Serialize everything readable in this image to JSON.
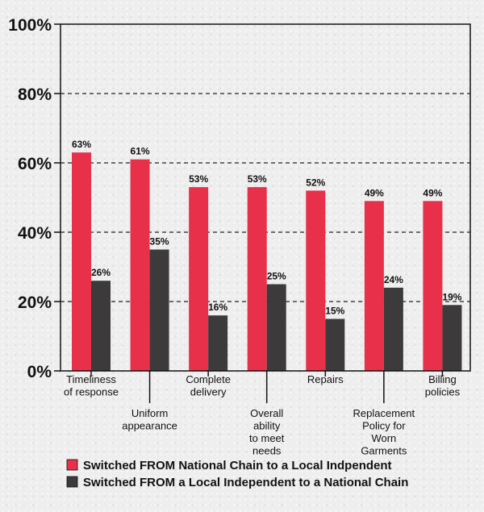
{
  "chart_data": {
    "type": "bar",
    "title": "",
    "xlabel": "",
    "ylabel": "",
    "ylim": [
      0,
      100
    ],
    "yticks": [
      "0%",
      "20%",
      "40%",
      "60%",
      "80%",
      "100%"
    ],
    "grid": "dashed horizontal",
    "legend_position": "bottom",
    "categories": [
      [
        "Timeliness",
        "of response"
      ],
      [
        "Uniform",
        "appearance"
      ],
      [
        "Complete",
        "delivery"
      ],
      [
        "Overall",
        "ability",
        "to meet",
        "needs"
      ],
      [
        "Repairs"
      ],
      [
        "Replacement",
        "Policy for",
        "Worn",
        "Garments"
      ],
      [
        "Billing",
        "policies"
      ]
    ],
    "series": [
      {
        "name": "Switched FROM National Chain to a Local Indpendent",
        "color": "#e8304a",
        "values": [
          63,
          61,
          53,
          53,
          52,
          49,
          49
        ],
        "labels": [
          "63%",
          "61%",
          "53%",
          "53%",
          "52%",
          "49%",
          "49%"
        ]
      },
      {
        "name": "Switched FROM a Local Independent to a National Chain",
        "color": "#3c3a3b",
        "values": [
          26,
          35,
          16,
          25,
          15,
          24,
          19
        ],
        "labels": [
          "26%",
          "35%",
          "16%",
          "25%",
          "15%",
          "24%",
          "19%"
        ]
      }
    ]
  }
}
